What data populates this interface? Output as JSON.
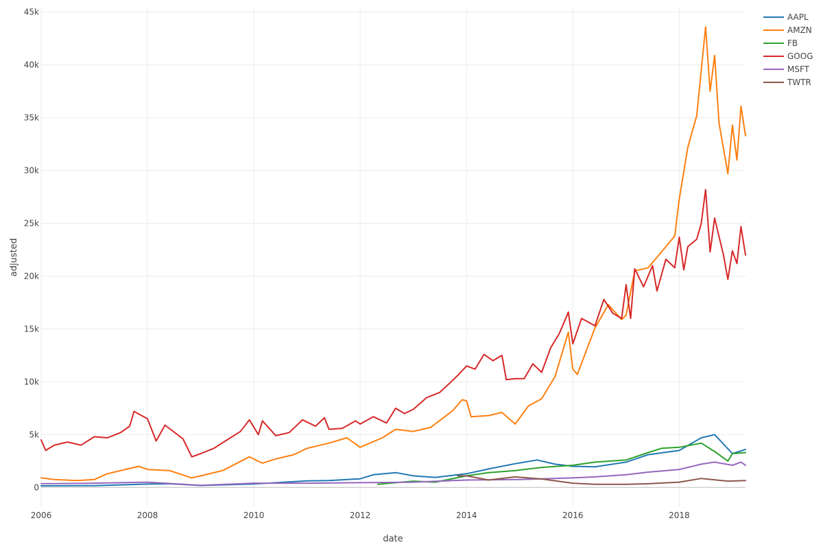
{
  "chart_data": {
    "type": "line",
    "xlabel": "date",
    "ylabel": "adjusted",
    "x_range": [
      "2006-01-01",
      "2019-04-01"
    ],
    "ylim": [
      -1800,
      45500
    ],
    "x_ticks": [
      {
        "date": "2006-01-01",
        "label": "2006"
      },
      {
        "date": "2008-01-01",
        "label": "2008"
      },
      {
        "date": "2010-01-01",
        "label": "2010"
      },
      {
        "date": "2012-01-01",
        "label": "2012"
      },
      {
        "date": "2014-01-01",
        "label": "2014"
      },
      {
        "date": "2016-01-01",
        "label": "2016"
      },
      {
        "date": "2018-01-01",
        "label": "2018"
      }
    ],
    "y_ticks": [
      {
        "value": 0,
        "label": "0"
      },
      {
        "value": 5000,
        "label": "5k"
      },
      {
        "value": 10000,
        "label": "10k"
      },
      {
        "value": 15000,
        "label": "15k"
      },
      {
        "value": 20000,
        "label": "20k"
      },
      {
        "value": 25000,
        "label": "25k"
      },
      {
        "value": 30000,
        "label": "30k"
      },
      {
        "value": 35000,
        "label": "35k"
      },
      {
        "value": 40000,
        "label": "40k"
      },
      {
        "value": 45000,
        "label": "45k"
      }
    ],
    "grid": true,
    "legend": "top-right",
    "series": [
      {
        "name": "AAPL",
        "color": "#1f77b4",
        "points": [
          [
            "2006-01-01",
            150
          ],
          [
            "2007-01-01",
            170
          ],
          [
            "2008-01-01",
            320
          ],
          [
            "2008-06-01",
            350
          ],
          [
            "2009-01-01",
            180
          ],
          [
            "2010-01-01",
            330
          ],
          [
            "2011-01-01",
            620
          ],
          [
            "2011-06-01",
            650
          ],
          [
            "2012-01-01",
            820
          ],
          [
            "2012-04-01",
            1200
          ],
          [
            "2012-09-01",
            1400
          ],
          [
            "2013-01-01",
            1100
          ],
          [
            "2013-06-01",
            950
          ],
          [
            "2014-01-01",
            1300
          ],
          [
            "2014-06-01",
            1750
          ],
          [
            "2014-12-01",
            2250
          ],
          [
            "2015-05-01",
            2600
          ],
          [
            "2015-09-01",
            2200
          ],
          [
            "2016-01-01",
            2000
          ],
          [
            "2016-06-01",
            1950
          ],
          [
            "2017-01-01",
            2400
          ],
          [
            "2017-06-01",
            3100
          ],
          [
            "2018-01-01",
            3500
          ],
          [
            "2018-06-01",
            4700
          ],
          [
            "2018-09-01",
            5000
          ],
          [
            "2019-01-01",
            3200
          ],
          [
            "2019-04-01",
            3600
          ]
        ]
      },
      {
        "name": "AMZN",
        "color": "#ff7f0e",
        "points": [
          [
            "2006-01-01",
            900
          ],
          [
            "2006-04-01",
            750
          ],
          [
            "2006-09-01",
            650
          ],
          [
            "2007-01-01",
            750
          ],
          [
            "2007-04-01",
            1300
          ],
          [
            "2007-09-01",
            1800
          ],
          [
            "2007-11-01",
            2000
          ],
          [
            "2008-01-01",
            1700
          ],
          [
            "2008-06-01",
            1600
          ],
          [
            "2008-11-01",
            900
          ],
          [
            "2009-01-01",
            1100
          ],
          [
            "2009-06-01",
            1600
          ],
          [
            "2009-12-01",
            2900
          ],
          [
            "2010-03-01",
            2300
          ],
          [
            "2010-06-01",
            2700
          ],
          [
            "2010-10-01",
            3100
          ],
          [
            "2011-01-01",
            3700
          ],
          [
            "2011-06-01",
            4200
          ],
          [
            "2011-10-01",
            4700
          ],
          [
            "2012-01-01",
            3800
          ],
          [
            "2012-06-01",
            4700
          ],
          [
            "2012-09-01",
            5500
          ],
          [
            "2013-01-01",
            5300
          ],
          [
            "2013-05-01",
            5700
          ],
          [
            "2013-10-01",
            7300
          ],
          [
            "2013-12-01",
            8300
          ],
          [
            "2014-01-01",
            8200
          ],
          [
            "2014-02-01",
            6700
          ],
          [
            "2014-06-01",
            6800
          ],
          [
            "2014-09-01",
            7100
          ],
          [
            "2014-12-01",
            6000
          ],
          [
            "2015-03-01",
            7700
          ],
          [
            "2015-06-01",
            8400
          ],
          [
            "2015-09-01",
            10500
          ],
          [
            "2015-12-01",
            14700
          ],
          [
            "2016-01-01",
            11200
          ],
          [
            "2016-02-01",
            10700
          ],
          [
            "2016-06-01",
            15100
          ],
          [
            "2016-09-01",
            17300
          ],
          [
            "2016-12-01",
            15900
          ],
          [
            "2017-01-01",
            16300
          ],
          [
            "2017-03-01",
            20500
          ],
          [
            "2017-06-01",
            20800
          ],
          [
            "2017-09-01",
            22300
          ],
          [
            "2017-12-01",
            23800
          ],
          [
            "2018-01-01",
            27300
          ],
          [
            "2018-03-01",
            32200
          ],
          [
            "2018-05-01",
            35200
          ],
          [
            "2018-07-01",
            43600
          ],
          [
            "2018-08-01",
            37500
          ],
          [
            "2018-09-01",
            40900
          ],
          [
            "2018-10-01",
            34500
          ],
          [
            "2018-12-01",
            29700
          ],
          [
            "2019-01-01",
            34300
          ],
          [
            "2019-02-01",
            31000
          ],
          [
            "2019-03-01",
            36100
          ],
          [
            "2019-04-01",
            33300
          ]
        ]
      },
      {
        "name": "FB",
        "color": "#2ca02c",
        "points": [
          [
            "2012-05-01",
            300
          ],
          [
            "2012-09-01",
            450
          ],
          [
            "2013-01-01",
            600
          ],
          [
            "2013-06-01",
            500
          ],
          [
            "2014-01-01",
            1100
          ],
          [
            "2014-06-01",
            1400
          ],
          [
            "2014-12-01",
            1600
          ],
          [
            "2015-06-01",
            1900
          ],
          [
            "2016-01-01",
            2100
          ],
          [
            "2016-06-01",
            2400
          ],
          [
            "2017-01-01",
            2600
          ],
          [
            "2017-06-01",
            3300
          ],
          [
            "2017-09-01",
            3700
          ],
          [
            "2018-01-01",
            3800
          ],
          [
            "2018-06-01",
            4200
          ],
          [
            "2018-09-01",
            3400
          ],
          [
            "2018-12-01",
            2500
          ],
          [
            "2019-01-01",
            3200
          ],
          [
            "2019-04-01",
            3300
          ]
        ]
      },
      {
        "name": "GOOG",
        "color": "#d62728",
        "points": [
          [
            "2006-01-01",
            4500
          ],
          [
            "2006-02-01",
            3500
          ],
          [
            "2006-04-01",
            4000
          ],
          [
            "2006-07-01",
            4300
          ],
          [
            "2006-10-01",
            4000
          ],
          [
            "2007-01-01",
            4800
          ],
          [
            "2007-04-01",
            4700
          ],
          [
            "2007-07-01",
            5200
          ],
          [
            "2007-09-01",
            5800
          ],
          [
            "2007-10-01",
            7200
          ],
          [
            "2008-01-01",
            6500
          ],
          [
            "2008-03-01",
            4400
          ],
          [
            "2008-05-01",
            5900
          ],
          [
            "2008-09-01",
            4600
          ],
          [
            "2008-11-01",
            2900
          ],
          [
            "2009-01-01",
            3200
          ],
          [
            "2009-04-01",
            3700
          ],
          [
            "2009-07-01",
            4500
          ],
          [
            "2009-10-01",
            5300
          ],
          [
            "2009-12-01",
            6400
          ],
          [
            "2010-02-01",
            5000
          ],
          [
            "2010-03-01",
            6300
          ],
          [
            "2010-06-01",
            4900
          ],
          [
            "2010-09-01",
            5200
          ],
          [
            "2010-12-01",
            6400
          ],
          [
            "2011-03-01",
            5800
          ],
          [
            "2011-05-01",
            6600
          ],
          [
            "2011-06-01",
            5500
          ],
          [
            "2011-09-01",
            5600
          ],
          [
            "2011-12-01",
            6300
          ],
          [
            "2012-01-01",
            6000
          ],
          [
            "2012-04-01",
            6700
          ],
          [
            "2012-07-01",
            6100
          ],
          [
            "2012-09-01",
            7500
          ],
          [
            "2012-11-01",
            7000
          ],
          [
            "2013-01-01",
            7400
          ],
          [
            "2013-04-01",
            8500
          ],
          [
            "2013-07-01",
            9000
          ],
          [
            "2013-09-01",
            9800
          ],
          [
            "2013-11-01",
            10600
          ],
          [
            "2014-01-01",
            11500
          ],
          [
            "2014-03-01",
            11200
          ],
          [
            "2014-05-01",
            12600
          ],
          [
            "2014-07-01",
            12000
          ],
          [
            "2014-09-01",
            12500
          ],
          [
            "2014-10-01",
            10200
          ],
          [
            "2014-12-01",
            10300
          ],
          [
            "2015-02-01",
            10300
          ],
          [
            "2015-04-01",
            11700
          ],
          [
            "2015-06-01",
            10900
          ],
          [
            "2015-08-01",
            13200
          ],
          [
            "2015-10-01",
            14600
          ],
          [
            "2015-12-01",
            16600
          ],
          [
            "2016-01-01",
            13600
          ],
          [
            "2016-03-01",
            16000
          ],
          [
            "2016-06-01",
            15300
          ],
          [
            "2016-08-01",
            17800
          ],
          [
            "2016-10-01",
            16500
          ],
          [
            "2016-12-01",
            16000
          ],
          [
            "2017-01-01",
            19200
          ],
          [
            "2017-02-01",
            16000
          ],
          [
            "2017-03-01",
            20700
          ],
          [
            "2017-05-01",
            19000
          ],
          [
            "2017-07-01",
            21000
          ],
          [
            "2017-08-01",
            18600
          ],
          [
            "2017-10-01",
            21600
          ],
          [
            "2017-12-01",
            20800
          ],
          [
            "2018-01-01",
            23700
          ],
          [
            "2018-02-01",
            20600
          ],
          [
            "2018-03-01",
            22800
          ],
          [
            "2018-05-01",
            23500
          ],
          [
            "2018-06-01",
            25000
          ],
          [
            "2018-07-01",
            28200
          ],
          [
            "2018-08-01",
            22300
          ],
          [
            "2018-09-01",
            25500
          ],
          [
            "2018-11-01",
            22000
          ],
          [
            "2018-12-01",
            19700
          ],
          [
            "2019-01-01",
            22400
          ],
          [
            "2019-02-01",
            21200
          ],
          [
            "2019-03-01",
            24700
          ],
          [
            "2019-04-01",
            22000
          ]
        ]
      },
      {
        "name": "MSFT",
        "color": "#9467bd",
        "points": [
          [
            "2006-01-01",
            350
          ],
          [
            "2007-01-01",
            400
          ],
          [
            "2008-01-01",
            500
          ],
          [
            "2009-01-01",
            200
          ],
          [
            "2010-01-01",
            400
          ],
          [
            "2011-01-01",
            400
          ],
          [
            "2012-01-01",
            450
          ],
          [
            "2013-01-01",
            500
          ],
          [
            "2014-01-01",
            700
          ],
          [
            "2015-01-01",
            750
          ],
          [
            "2016-01-01",
            900
          ],
          [
            "2016-06-01",
            1000
          ],
          [
            "2017-01-01",
            1200
          ],
          [
            "2017-06-01",
            1450
          ],
          [
            "2018-01-01",
            1700
          ],
          [
            "2018-06-01",
            2200
          ],
          [
            "2018-09-01",
            2400
          ],
          [
            "2019-01-01",
            2100
          ],
          [
            "2019-03-01",
            2400
          ],
          [
            "2019-04-01",
            2100
          ]
        ]
      },
      {
        "name": "TWTR",
        "color": "#8c564b",
        "points": [
          [
            "2013-11-01",
            1100
          ],
          [
            "2014-01-01",
            1100
          ],
          [
            "2014-06-01",
            700
          ],
          [
            "2014-12-01",
            1000
          ],
          [
            "2015-06-01",
            800
          ],
          [
            "2016-01-01",
            400
          ],
          [
            "2016-06-01",
            300
          ],
          [
            "2017-01-01",
            300
          ],
          [
            "2017-06-01",
            350
          ],
          [
            "2018-01-01",
            500
          ],
          [
            "2018-06-01",
            850
          ],
          [
            "2018-12-01",
            600
          ],
          [
            "2019-04-01",
            650
          ]
        ]
      }
    ]
  }
}
